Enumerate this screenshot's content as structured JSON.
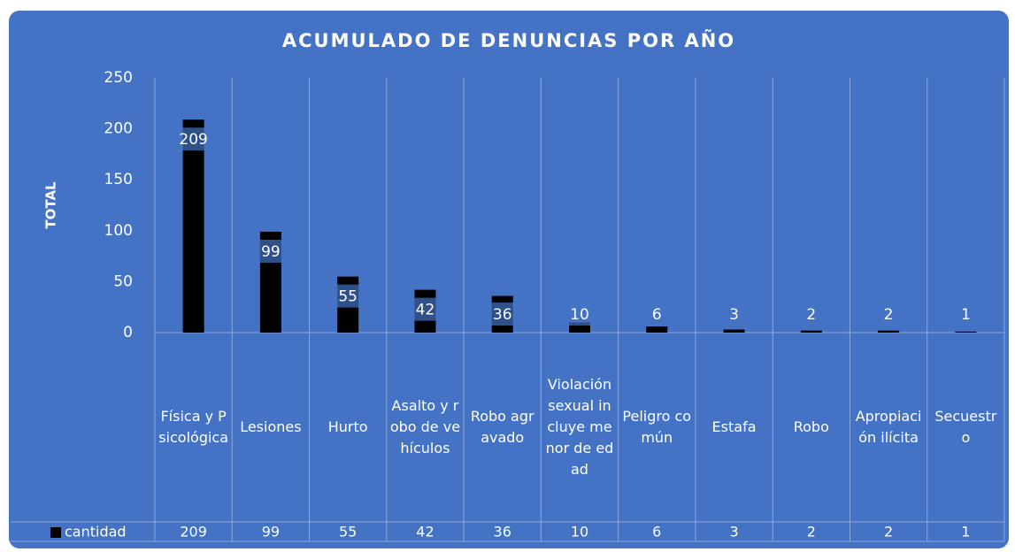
{
  "chart_data": {
    "type": "bar",
    "title": "ACUMULADO DE DENUNCIAS POR AÑO",
    "y_label": "TOTAL",
    "categories": [
      "Física y Psicológica",
      "Lesiones",
      "Hurto",
      "Asalto y robo de vehículos",
      "Robo agravado",
      "Violación sexual incluye menor de edad",
      "Peligro común",
      "Estafa",
      "Robo",
      "Apropiación ilícita",
      "Secuestro"
    ],
    "series": [
      {
        "name": "cantidad",
        "color": "#000000",
        "values": [
          209,
          99,
          55,
          42,
          36,
          10,
          6,
          3,
          2,
          2,
          1
        ]
      }
    ],
    "ylim": [
      0,
      250
    ],
    "yticks": [
      0,
      50,
      100,
      150,
      200,
      250
    ],
    "data_table": true
  }
}
